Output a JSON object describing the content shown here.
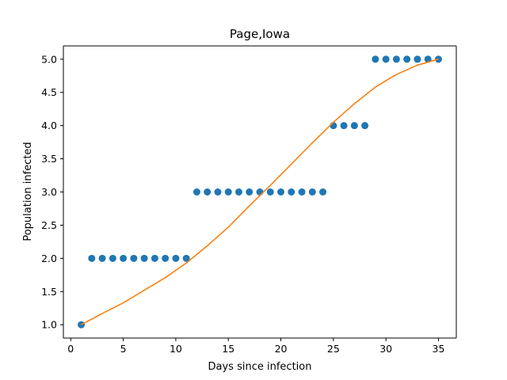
{
  "chart_data": {
    "type": "scatter",
    "title": "Page,Iowa",
    "xlabel": "Days since infection",
    "ylabel": "Population infected",
    "xlim": [
      -0.7,
      36.7
    ],
    "ylim": [
      0.8,
      5.2
    ],
    "xticks": [
      0,
      5,
      10,
      15,
      20,
      25,
      30,
      35
    ],
    "xtick_labels": [
      "0",
      "5",
      "10",
      "15",
      "20",
      "25",
      "30",
      "35"
    ],
    "yticks": [
      1.0,
      1.5,
      2.0,
      2.5,
      3.0,
      3.5,
      4.0,
      4.5,
      5.0
    ],
    "ytick_labels": [
      "1.0",
      "1.5",
      "2.0",
      "2.5",
      "3.0",
      "3.5",
      "4.0",
      "4.5",
      "5.0"
    ],
    "grid": false,
    "legend": "none",
    "series": [
      {
        "kind": "scatter",
        "color": "#1f77b4",
        "x": [
          1,
          2,
          3,
          4,
          5,
          6,
          7,
          8,
          9,
          10,
          11,
          12,
          13,
          14,
          15,
          16,
          17,
          18,
          19,
          20,
          21,
          22,
          23,
          24,
          25,
          26,
          27,
          28,
          29,
          30,
          31,
          32,
          33,
          34,
          35
        ],
        "y": [
          1,
          2,
          2,
          2,
          2,
          2,
          2,
          2,
          2,
          2,
          2,
          3,
          3,
          3,
          3,
          3,
          3,
          3,
          3,
          3,
          3,
          3,
          3,
          3,
          4,
          4,
          4,
          4,
          5,
          5,
          5,
          5,
          5,
          5,
          5
        ]
      },
      {
        "kind": "line",
        "color": "#ff7f0e",
        "x": [
          1,
          3,
          5,
          7,
          9,
          11,
          13,
          15,
          17,
          19,
          21,
          23,
          25,
          27,
          29,
          31,
          33,
          35
        ],
        "y": [
          1.0,
          1.17,
          1.33,
          1.52,
          1.71,
          1.93,
          2.19,
          2.47,
          2.79,
          3.1,
          3.42,
          3.74,
          4.05,
          4.33,
          4.58,
          4.77,
          4.91,
          5.0
        ]
      }
    ]
  }
}
